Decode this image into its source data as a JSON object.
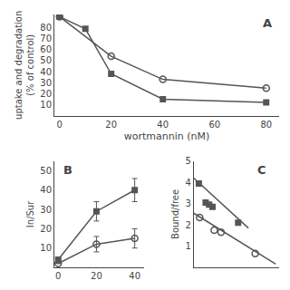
{
  "chart_data": [
    {
      "type": "line",
      "xlabel": "wortmannin (nM)",
      "ylabel": "uptake and degradation\n(% of control)",
      "annotations": [
        "A"
      ],
      "xlim": [
        -2,
        85
      ],
      "ylim": [
        0,
        92
      ],
      "xticks": [
        0,
        20,
        40,
        60,
        80
      ],
      "yticks": [
        10,
        20,
        30,
        40,
        50,
        60,
        70,
        80
      ],
      "grid": false,
      "series": [
        {
          "color": "#555555",
          "marker": "square",
          "x": [
            0,
            10,
            20,
            40,
            80
          ],
          "values": [
            90,
            79,
            38,
            15,
            12
          ]
        },
        {
          "color": "#555555",
          "marker": "circle-open",
          "x": [
            0,
            20,
            40,
            80
          ],
          "values": [
            90,
            54,
            33,
            25
          ]
        }
      ]
    },
    {
      "type": "line",
      "ylabel": "In/Sur",
      "annotations": [
        "B"
      ],
      "xlim": [
        -2,
        45
      ],
      "ylim": [
        0,
        55
      ],
      "xticks": [
        0,
        20,
        40
      ],
      "yticks": [
        10,
        20,
        30,
        40,
        50
      ],
      "grid": false,
      "series": [
        {
          "color": "#555555",
          "marker": "square",
          "x": [
            0,
            20,
            40
          ],
          "values": [
            4,
            29,
            40
          ],
          "errors": [
            0,
            5,
            6
          ]
        },
        {
          "color": "#555555",
          "marker": "circle-open",
          "x": [
            0,
            20,
            40
          ],
          "values": [
            2,
            12,
            15
          ],
          "errors": [
            0,
            4,
            5
          ]
        }
      ]
    },
    {
      "type": "scatter",
      "ylabel": "Bound/free",
      "annotations": [
        "C"
      ],
      "xlim": [
        0,
        5
      ],
      "ylim": [
        0,
        5
      ],
      "xticks": [],
      "yticks": [
        1,
        2,
        3,
        4,
        5
      ],
      "tick_labels": "y",
      "grid": false,
      "series": [
        {
          "type": "line",
          "color": "#555555",
          "x": [
            0.0,
            3.2
          ],
          "values": [
            4.2,
            1.85
          ]
        },
        {
          "type": "line",
          "color": "#555555",
          "x": [
            0.0,
            4.8
          ],
          "values": [
            2.55,
            0.15
          ]
        },
        {
          "type": "scatter",
          "color": "#555555",
          "marker": "square",
          "x": [
            0.3,
            0.7,
            0.9,
            1.1,
            2.6
          ],
          "values": [
            3.95,
            3.05,
            2.95,
            2.85,
            2.1
          ]
        },
        {
          "type": "scatter",
          "color": "#555555",
          "marker": "circle-open",
          "x": [
            0.35,
            1.2,
            1.6,
            3.6
          ],
          "values": [
            2.35,
            1.75,
            1.65,
            0.65
          ]
        }
      ]
    }
  ]
}
